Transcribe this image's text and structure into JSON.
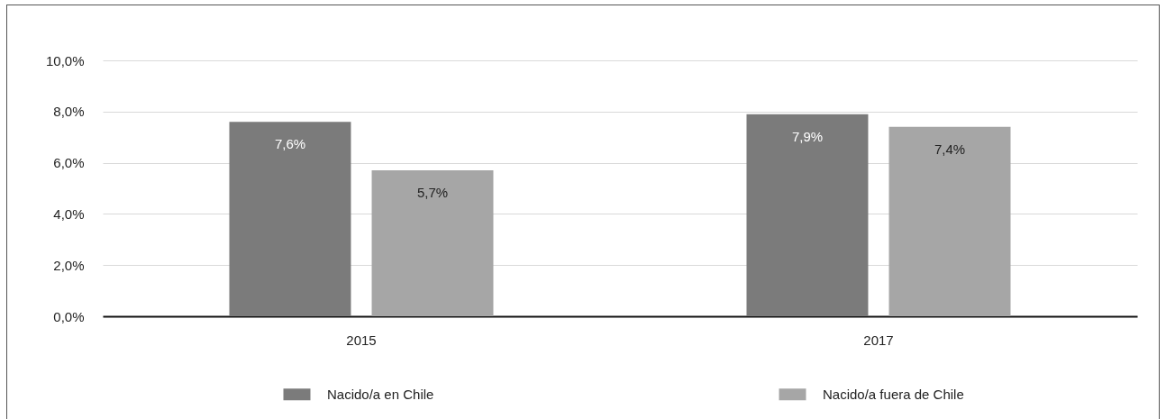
{
  "chart_data": {
    "type": "bar",
    "categories": [
      "2015",
      "2017"
    ],
    "series": [
      {
        "name": "Nacido/a en Chile",
        "color": "#7b7b7b",
        "values": [
          7.6,
          7.9
        ],
        "value_labels": [
          "7,6%",
          "7,9%"
        ]
      },
      {
        "name": "Nacido/a fuera de Chile",
        "color": "#a6a6a6",
        "values": [
          5.7,
          7.4
        ],
        "value_labels": [
          "5,7%",
          "7,4%"
        ]
      }
    ],
    "ylim": [
      0,
      10
    ],
    "yticks": [
      {
        "value": 0,
        "label": "0,0%"
      },
      {
        "value": 2,
        "label": "2,0%"
      },
      {
        "value": 4,
        "label": "4,0%"
      },
      {
        "value": 6,
        "label": "6,0%"
      },
      {
        "value": 8,
        "label": "8,0%"
      },
      {
        "value": 10,
        "label": "10,0%"
      }
    ],
    "grid": "y",
    "legend": "bottom"
  }
}
